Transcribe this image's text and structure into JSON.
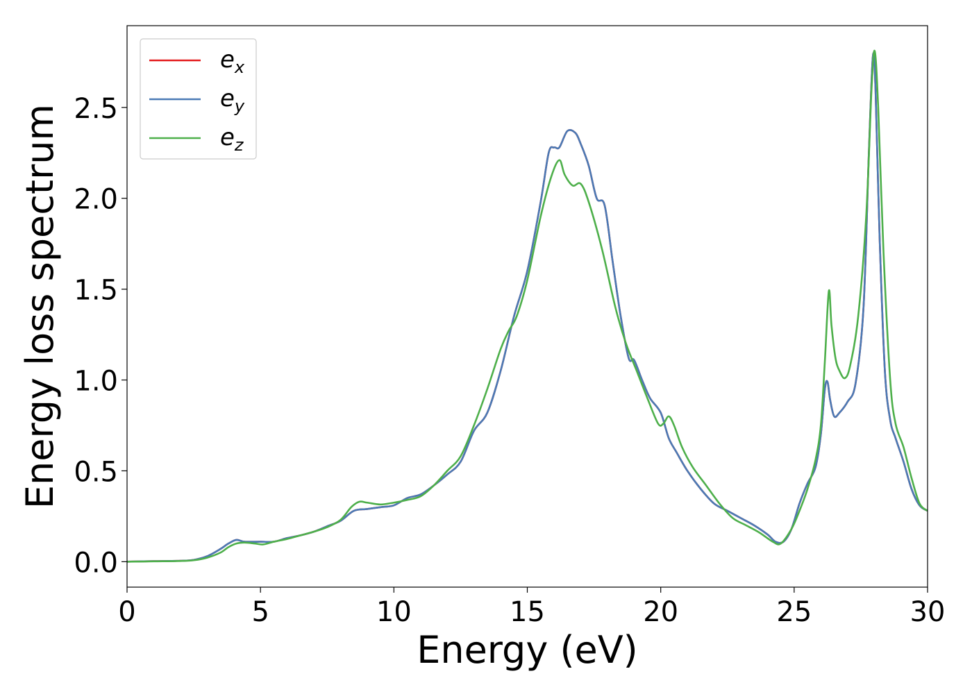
{
  "chart_data": {
    "type": "line",
    "xlabel": "Energy (eV)",
    "ylabel": "Energy loss spectrum",
    "xlim": [
      0,
      30
    ],
    "ylim": [
      -0.14,
      2.95
    ],
    "xticks": [
      0,
      5,
      10,
      15,
      20,
      25,
      30
    ],
    "yticks": [
      0.0,
      0.5,
      1.0,
      1.5,
      2.0,
      2.5
    ],
    "xtick_labels": [
      "0",
      "5",
      "10",
      "15",
      "20",
      "25",
      "30"
    ],
    "ytick_labels": [
      "0.0",
      "0.5",
      "1.0",
      "1.5",
      "2.0",
      "2.5"
    ],
    "grid": false,
    "legend_position": "top-left",
    "series": [
      {
        "name": "e",
        "subscript": "x",
        "color": "#e41a1c",
        "x": [
          0,
          1,
          2,
          2.5,
          3,
          3.5,
          3.8,
          4.1,
          4.4,
          5,
          5.5,
          6,
          6.5,
          7,
          7.5,
          8,
          8.5,
          9,
          9.5,
          10,
          10.5,
          11,
          11.5,
          12,
          12.5,
          13,
          13.5,
          14,
          14.5,
          15,
          15.5,
          15.8,
          16.0,
          16.2,
          16.5,
          16.8,
          17.0,
          17.3,
          17.6,
          17.9,
          18.2,
          18.5,
          18.8,
          19.0,
          19.3,
          19.6,
          20.0,
          20.3,
          20.6,
          21.0,
          21.5,
          22.0,
          22.5,
          23.0,
          23.5,
          24.0,
          24.3,
          24.6,
          24.9,
          25.2,
          25.5,
          25.8,
          26.0,
          26.15,
          26.25,
          26.35,
          26.5,
          26.7,
          27.0,
          27.3,
          27.6,
          27.8,
          27.95,
          28.05,
          28.2,
          28.4,
          28.6,
          28.8,
          29.1,
          29.4,
          29.7,
          30
        ],
        "values": [
          0.0,
          0.003,
          0.005,
          0.01,
          0.03,
          0.07,
          0.1,
          0.12,
          0.11,
          0.11,
          0.11,
          0.13,
          0.145,
          0.165,
          0.195,
          0.225,
          0.28,
          0.29,
          0.3,
          0.31,
          0.35,
          0.37,
          0.42,
          0.48,
          0.55,
          0.72,
          0.82,
          1.05,
          1.35,
          1.6,
          1.98,
          2.25,
          2.28,
          2.28,
          2.37,
          2.36,
          2.3,
          2.18,
          2.0,
          1.96,
          1.65,
          1.35,
          1.12,
          1.11,
          1.0,
          0.9,
          0.82,
          0.68,
          0.6,
          0.5,
          0.4,
          0.32,
          0.28,
          0.24,
          0.2,
          0.15,
          0.11,
          0.11,
          0.18,
          0.32,
          0.43,
          0.52,
          0.7,
          0.95,
          0.99,
          0.89,
          0.8,
          0.82,
          0.88,
          0.98,
          1.4,
          2.25,
          2.78,
          2.6,
          1.8,
          1.05,
          0.78,
          0.68,
          0.55,
          0.4,
          0.31,
          0.28
        ]
      },
      {
        "name": "e",
        "subscript": "y",
        "color": "#4a7ab5",
        "x": [
          0,
          1,
          2,
          2.5,
          3,
          3.5,
          3.8,
          4.1,
          4.4,
          5,
          5.5,
          6,
          6.5,
          7,
          7.5,
          8,
          8.5,
          9,
          9.5,
          10,
          10.5,
          11,
          11.5,
          12,
          12.5,
          13,
          13.5,
          14,
          14.5,
          15,
          15.5,
          15.8,
          16.0,
          16.2,
          16.5,
          16.8,
          17.0,
          17.3,
          17.6,
          17.9,
          18.2,
          18.5,
          18.8,
          19.0,
          19.3,
          19.6,
          20.0,
          20.3,
          20.6,
          21.0,
          21.5,
          22.0,
          22.5,
          23.0,
          23.5,
          24.0,
          24.3,
          24.6,
          24.9,
          25.2,
          25.5,
          25.8,
          26.0,
          26.15,
          26.25,
          26.35,
          26.5,
          26.7,
          27.0,
          27.3,
          27.6,
          27.8,
          27.95,
          28.05,
          28.2,
          28.4,
          28.6,
          28.8,
          29.1,
          29.4,
          29.7,
          30
        ],
        "values": [
          0.0,
          0.003,
          0.005,
          0.01,
          0.03,
          0.07,
          0.1,
          0.12,
          0.11,
          0.11,
          0.11,
          0.13,
          0.145,
          0.165,
          0.195,
          0.225,
          0.28,
          0.29,
          0.3,
          0.31,
          0.35,
          0.37,
          0.42,
          0.48,
          0.55,
          0.72,
          0.82,
          1.05,
          1.35,
          1.6,
          1.98,
          2.25,
          2.28,
          2.28,
          2.37,
          2.36,
          2.3,
          2.18,
          2.0,
          1.96,
          1.65,
          1.35,
          1.12,
          1.11,
          1.0,
          0.9,
          0.82,
          0.68,
          0.6,
          0.5,
          0.4,
          0.32,
          0.28,
          0.24,
          0.2,
          0.15,
          0.11,
          0.11,
          0.18,
          0.32,
          0.43,
          0.52,
          0.7,
          0.95,
          0.99,
          0.89,
          0.8,
          0.82,
          0.88,
          0.98,
          1.4,
          2.25,
          2.78,
          2.6,
          1.8,
          1.05,
          0.78,
          0.68,
          0.55,
          0.4,
          0.31,
          0.28
        ]
      },
      {
        "name": "e",
        "subscript": "z",
        "color": "#4daf4a",
        "x": [
          0,
          1,
          2,
          2.5,
          3,
          3.5,
          3.8,
          4.1,
          4.4,
          4.8,
          5.1,
          5.5,
          6,
          6.5,
          7,
          7.5,
          8,
          8.4,
          8.7,
          9.0,
          9.5,
          10,
          10.5,
          11,
          11.5,
          12,
          12.5,
          13,
          13.5,
          14,
          14.3,
          14.6,
          15,
          15.5,
          15.9,
          16.2,
          16.4,
          16.7,
          17.0,
          17.3,
          17.8,
          18.3,
          18.7,
          19.1,
          19.5,
          19.9,
          20.1,
          20.3,
          20.5,
          20.8,
          21.2,
          21.7,
          22.2,
          22.7,
          23.2,
          23.7,
          24.2,
          24.5,
          24.9,
          25.2,
          25.5,
          25.8,
          26.0,
          26.15,
          26.3,
          26.4,
          26.55,
          26.7,
          26.9,
          27.1,
          27.4,
          27.7,
          27.9,
          28.02,
          28.15,
          28.35,
          28.6,
          28.8,
          29.1,
          29.4,
          29.7,
          30
        ],
        "values": [
          0.0,
          0.002,
          0.004,
          0.008,
          0.022,
          0.05,
          0.08,
          0.1,
          0.105,
          0.1,
          0.095,
          0.11,
          0.125,
          0.145,
          0.165,
          0.19,
          0.23,
          0.3,
          0.33,
          0.325,
          0.315,
          0.325,
          0.34,
          0.36,
          0.42,
          0.5,
          0.58,
          0.75,
          0.95,
          1.17,
          1.27,
          1.35,
          1.55,
          1.9,
          2.12,
          2.21,
          2.13,
          2.07,
          2.08,
          1.98,
          1.72,
          1.4,
          1.2,
          1.05,
          0.9,
          0.76,
          0.76,
          0.8,
          0.75,
          0.63,
          0.52,
          0.42,
          0.32,
          0.24,
          0.2,
          0.16,
          0.11,
          0.1,
          0.18,
          0.28,
          0.4,
          0.56,
          0.75,
          1.1,
          1.49,
          1.3,
          1.12,
          1.05,
          1.01,
          1.08,
          1.35,
          1.9,
          2.6,
          2.81,
          2.5,
          1.7,
          1.0,
          0.76,
          0.63,
          0.46,
          0.32,
          0.28
        ]
      }
    ]
  }
}
